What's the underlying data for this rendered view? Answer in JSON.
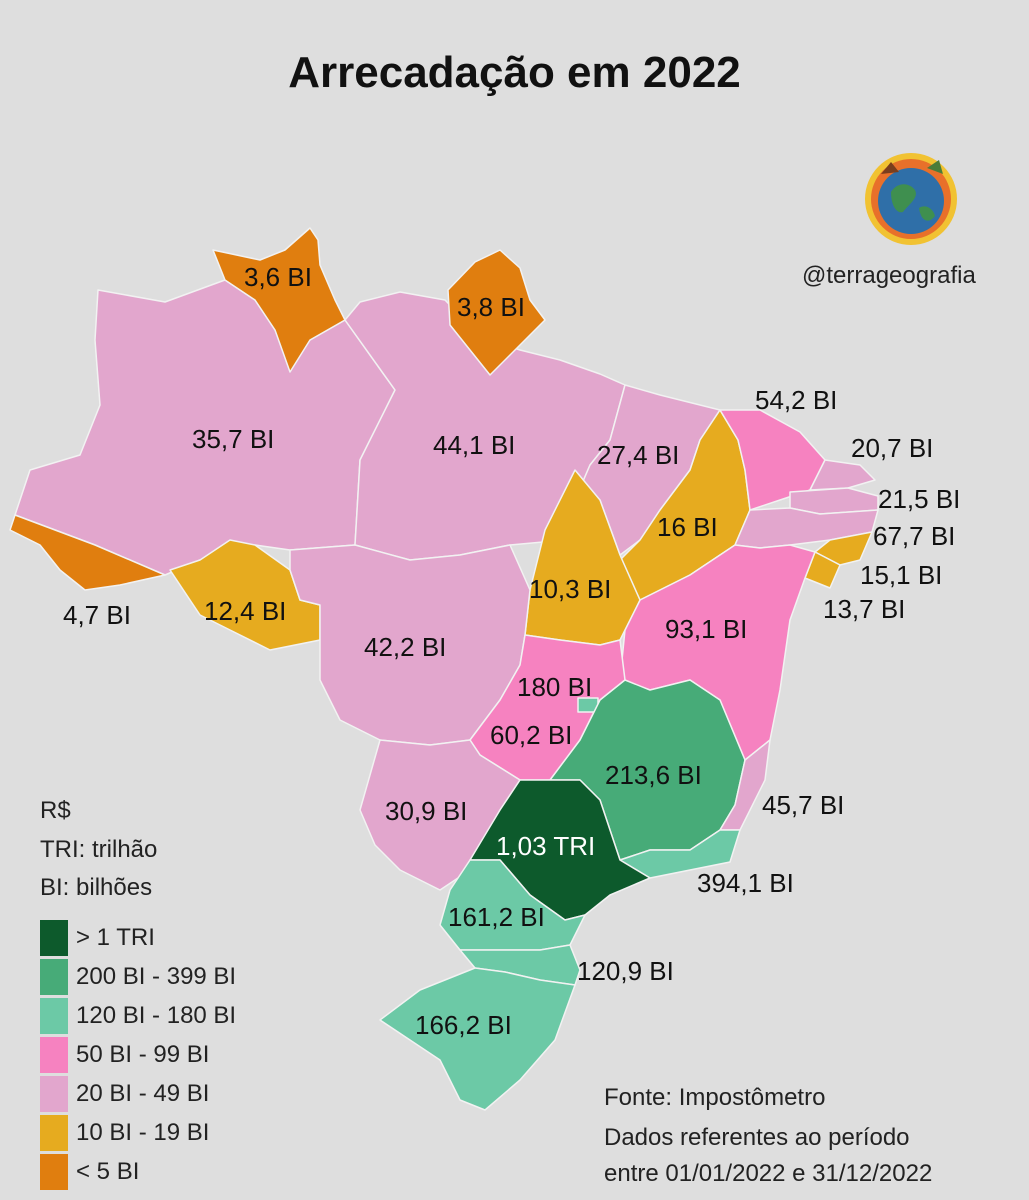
{
  "title": "Arrecadação em 2022",
  "handle": "@terrageografia",
  "colors": {
    "gt1tri": "#0d5a2c",
    "b200_399": "#47ab78",
    "b120_180": "#6cc9a6",
    "b50_99": "#f682c0",
    "b20_49": "#e2a6cd",
    "b10_19": "#e6ab1f",
    "lt5": "#e07e0f"
  },
  "states": {
    "rr": "3,6 BI",
    "ap": "3,8 BI",
    "am": "35,7 BI",
    "pa": "44,1 BI",
    "ma": "27,4 BI",
    "ce": "54,2 BI",
    "rn": "20,7 BI",
    "pb": "21,5 BI",
    "pe": "67,7 BI",
    "al": "15,1 BI",
    "se": "13,7 BI",
    "pi": "16 BI",
    "ac": "4,7 BI",
    "ro": "12,4 BI",
    "to": "10,3 BI",
    "ba": "93,1 BI",
    "mt": "42,2 BI",
    "df": "180 BI",
    "go": "60,2 BI",
    "mg": "213,6 BI",
    "es": "45,7 BI",
    "ms": "30,9 BI",
    "sp": "1,03 TRI",
    "rj": "394,1 BI",
    "pr": "161,2 BI",
    "sc": "120,9 BI",
    "rs": "166,2 BI"
  },
  "legend": {
    "unit": "R$",
    "tri": "TRI: trilhão",
    "bi": "BI: bilhões",
    "items": [
      {
        "label": "> 1 TRI",
        "color": "#0d5a2c"
      },
      {
        "label": "200 BI - 399 BI",
        "color": "#47ab78"
      },
      {
        "label": "120 BI - 180 BI",
        "color": "#6cc9a6"
      },
      {
        "label": "50 BI - 99 BI",
        "color": "#f682c0"
      },
      {
        "label": "20 BI - 49 BI",
        "color": "#e2a6cd"
      },
      {
        "label": "10 BI - 19 BI",
        "color": "#e6ab1f"
      },
      {
        "label": "< 5 BI",
        "color": "#e07e0f"
      }
    ]
  },
  "source": {
    "line1": "Fonte: Impostômetro",
    "line2": "Dados referentes ao período",
    "line3": "entre 01/01/2022 e 31/12/2022"
  }
}
